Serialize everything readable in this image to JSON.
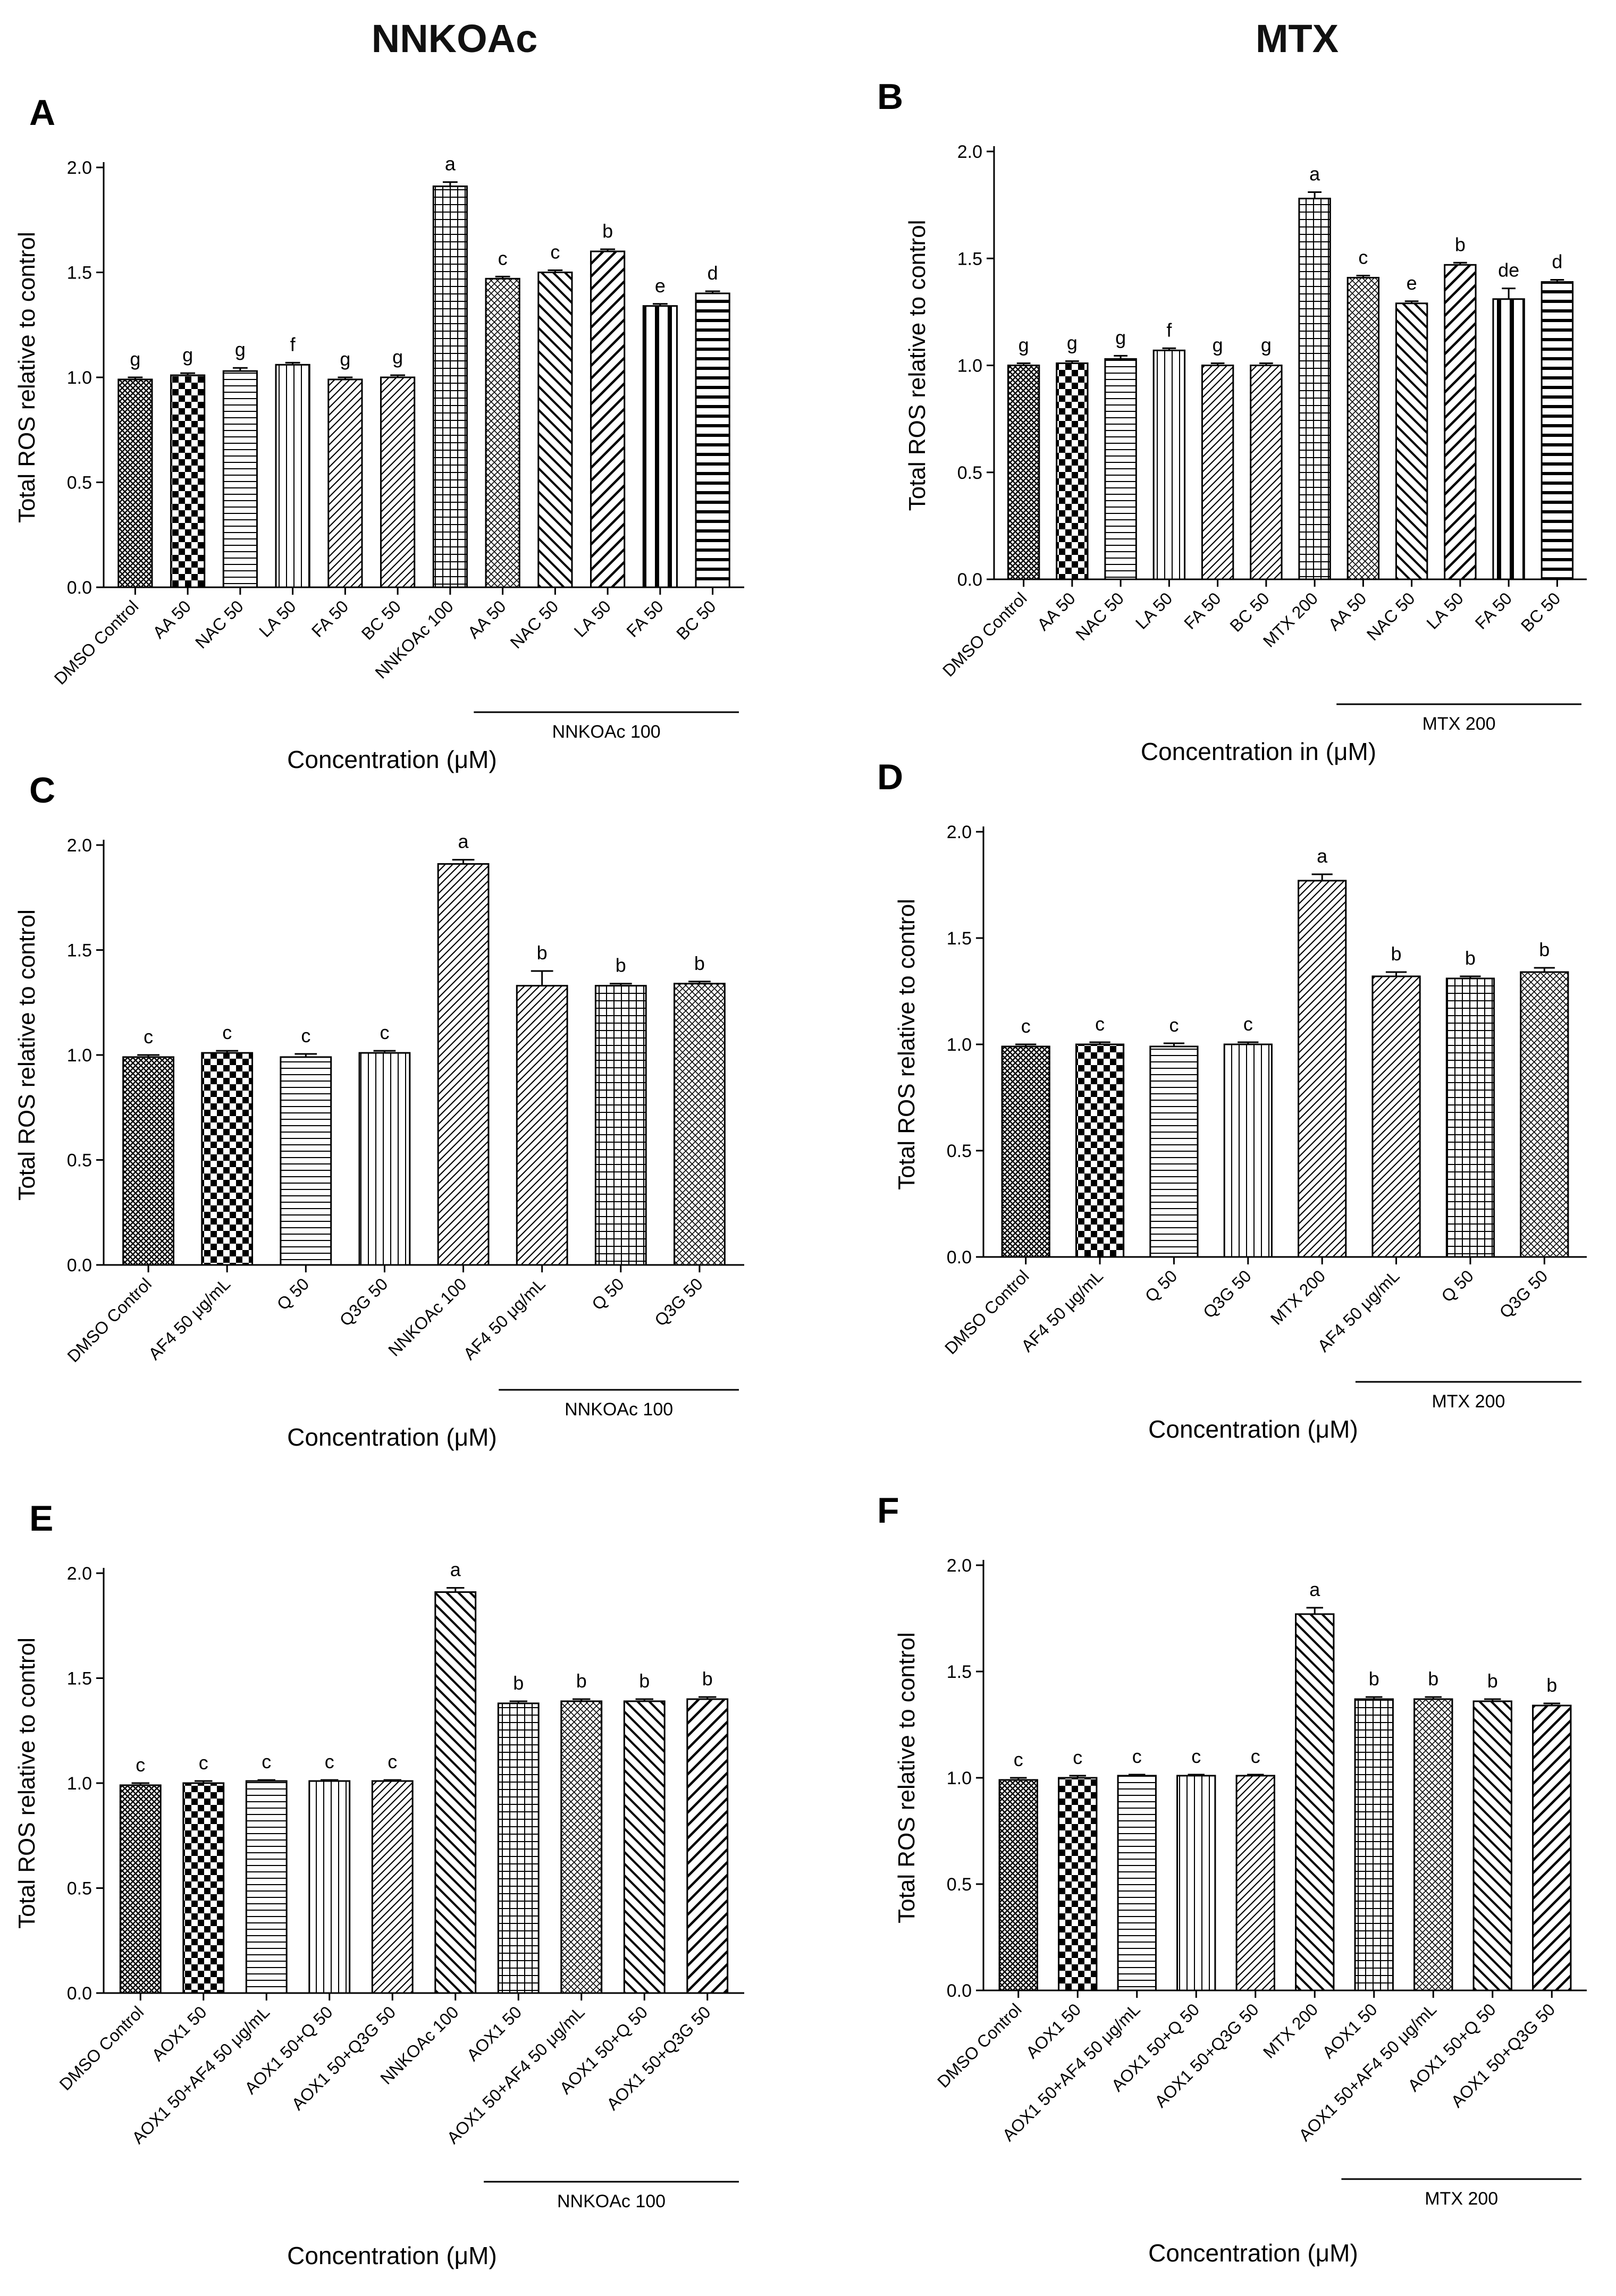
{
  "column_titles": {
    "left": "NNKOAc",
    "right": "MTX"
  },
  "patterns": {
    "crosshatch": "cross-hatch-fine",
    "checker": "checkerboard",
    "hlines": "horizontal-lines",
    "vlines": "vertical-lines",
    "diag_r": "diagonal-right",
    "grid": "square-grid",
    "diag_l": "diagonal-left",
    "diag_r_thick": "diagonal-right-thick",
    "vlines_thick": "vertical-lines-thick",
    "hlines_thick": "horizontal-lines-thick",
    "diamond": "diamond-hatch"
  },
  "chart_data": [
    {
      "panel": "A",
      "type": "bar",
      "ylabel": "Total ROS relative to control",
      "xlabel": "Concentration (μM)",
      "ylim": [
        0,
        2.0
      ],
      "yticks": [
        "0.0",
        "0.5",
        "1.0",
        "1.5",
        "2.0"
      ],
      "categories": [
        "DMSO Control",
        "AA 50",
        "NAC 50",
        "LA 50",
        "FA 50",
        "BC 50",
        "NNKOAc 100",
        "AA 50",
        "NAC 50",
        "LA 50",
        "FA 50",
        "BC 50"
      ],
      "values": [
        0.99,
        1.01,
        1.03,
        1.06,
        0.99,
        1.0,
        1.91,
        1.47,
        1.5,
        1.6,
        1.34,
        1.4
      ],
      "errors": [
        0.01,
        0.01,
        0.015,
        0.01,
        0.01,
        0.01,
        0.02,
        0.01,
        0.01,
        0.01,
        0.01,
        0.01
      ],
      "sig": [
        "g",
        "g",
        "g",
        "f",
        "g",
        "g",
        "a",
        "c",
        "c",
        "b",
        "e",
        "d"
      ],
      "fills": [
        "crosshatch",
        "checker",
        "hlines",
        "vlines",
        "diag_r",
        "diag_r",
        "grid",
        "diamond",
        "diag_l",
        "diag_r_thick",
        "vlines_thick",
        "hlines_thick"
      ],
      "group_label": "NNKOAc 100",
      "group_start": 7
    },
    {
      "panel": "B",
      "type": "bar",
      "ylabel": "Total ROS relative to control",
      "xlabel": "Concentration in (μM)",
      "ylim": [
        0,
        2.0
      ],
      "yticks": [
        "0.0",
        "0.5",
        "1.0",
        "1.5",
        "2.0"
      ],
      "categories": [
        "DMSO Control",
        "AA 50",
        "NAC 50",
        "LA 50",
        "FA 50",
        "BC 50",
        "MTX 200",
        "AA 50",
        "NAC 50",
        "LA 50",
        "FA 50",
        "BC 50"
      ],
      "values": [
        1.0,
        1.01,
        1.03,
        1.07,
        1.0,
        1.0,
        1.78,
        1.41,
        1.29,
        1.47,
        1.31,
        1.39
      ],
      "errors": [
        0.01,
        0.01,
        0.015,
        0.01,
        0.01,
        0.01,
        0.03,
        0.01,
        0.01,
        0.01,
        0.05,
        0.01
      ],
      "sig": [
        "g",
        "g",
        "g",
        "f",
        "g",
        "g",
        "a",
        "c",
        "e",
        "b",
        "de",
        "d"
      ],
      "fills": [
        "crosshatch",
        "checker",
        "hlines",
        "vlines",
        "diag_r",
        "diag_r",
        "grid",
        "diamond",
        "diag_l",
        "diag_r_thick",
        "vlines_thick",
        "hlines_thick"
      ],
      "group_label": "MTX 200",
      "group_start": 7
    },
    {
      "panel": "C",
      "type": "bar",
      "ylabel": "Total ROS relative to control",
      "xlabel": "Concentration (μM)",
      "ylim": [
        0,
        2.0
      ],
      "yticks": [
        "0.0",
        "0.5",
        "1.0",
        "1.5",
        "2.0"
      ],
      "categories": [
        "DMSO Control",
        "AF4 50 μg/mL",
        "Q 50",
        "Q3G 50",
        "NNKOAc 100",
        "AF4 50 μg/mL",
        "Q 50",
        "Q3G 50"
      ],
      "values": [
        0.99,
        1.01,
        0.99,
        1.01,
        1.91,
        1.33,
        1.33,
        1.34
      ],
      "errors": [
        0.01,
        0.01,
        0.015,
        0.01,
        0.02,
        0.07,
        0.01,
        0.01
      ],
      "sig": [
        "c",
        "c",
        "c",
        "c",
        "a",
        "b",
        "b",
        "b"
      ],
      "fills": [
        "crosshatch",
        "checker",
        "hlines",
        "vlines",
        "diag_r",
        "diag_r",
        "grid",
        "diamond"
      ],
      "group_label": "NNKOAc 100",
      "group_start": 5
    },
    {
      "panel": "D",
      "type": "bar",
      "ylabel": "Total ROS relative to control",
      "xlabel": "Concentration (μM)",
      "ylim": [
        0,
        2.0
      ],
      "yticks": [
        "0.0",
        "0.5",
        "1.0",
        "1.5",
        "2.0"
      ],
      "categories": [
        "DMSO Control",
        "AF4 50 μg/mL",
        "Q 50",
        "Q3G 50",
        "MTX 200",
        "AF4 50 μg/mL",
        "Q 50",
        "Q3G 50"
      ],
      "values": [
        0.99,
        1.0,
        0.99,
        1.0,
        1.77,
        1.32,
        1.31,
        1.34
      ],
      "errors": [
        0.01,
        0.01,
        0.015,
        0.01,
        0.03,
        0.02,
        0.01,
        0.02
      ],
      "sig": [
        "c",
        "c",
        "c",
        "c",
        "a",
        "b",
        "b",
        "b"
      ],
      "fills": [
        "crosshatch",
        "checker",
        "hlines",
        "vlines",
        "diag_r",
        "diag_r",
        "grid",
        "diamond"
      ],
      "group_label": "MTX 200",
      "group_start": 5
    },
    {
      "panel": "E",
      "type": "bar",
      "ylabel": "Total ROS relative to control",
      "xlabel": "Concentration (μM)",
      "ylim": [
        0,
        2.0
      ],
      "yticks": [
        "0.0",
        "0.5",
        "1.0",
        "1.5",
        "2.0"
      ],
      "categories": [
        "DMSO Control",
        "AOX1 50",
        "AOX1 50+AF4 50 μg/mL",
        "AOX1 50+Q 50",
        "AOX1 50+Q3G 50",
        "NNKOAc 100",
        "AOX1 50",
        "AOX1 50+AF4 50 μg/mL",
        "AOX1 50+Q 50",
        "AOX1 50+Q3G 50"
      ],
      "values": [
        0.99,
        1.0,
        1.01,
        1.01,
        1.01,
        1.91,
        1.38,
        1.39,
        1.39,
        1.4
      ],
      "errors": [
        0.01,
        0.01,
        0.005,
        0.005,
        0.005,
        0.02,
        0.01,
        0.01,
        0.01,
        0.01
      ],
      "sig": [
        "c",
        "c",
        "c",
        "c",
        "c",
        "a",
        "b",
        "b",
        "b",
        "b"
      ],
      "fills": [
        "crosshatch",
        "checker",
        "hlines",
        "vlines",
        "diag_r",
        "diag_l",
        "grid",
        "diamond",
        "diag_l",
        "diag_r_thick"
      ],
      "group_label": "NNKOAc 100",
      "group_start": 6
    },
    {
      "panel": "F",
      "type": "bar",
      "ylabel": "Total ROS relative to control",
      "xlabel": "Concentration (μM)",
      "ylim": [
        0,
        2.0
      ],
      "yticks": [
        "0.0",
        "0.5",
        "1.0",
        "1.5",
        "2.0"
      ],
      "categories": [
        "DMSO Control",
        "AOX1 50",
        "AOX1 50+AF4 50 μg/mL",
        "AOX1 50+Q 50",
        "AOX1 50+Q3G 50",
        "MTX 200",
        "AOX1 50",
        "AOX1 50+AF4 50 μg/mL",
        "AOX1 50+Q 50",
        "AOX1 50+Q3G 50"
      ],
      "values": [
        0.99,
        1.0,
        1.01,
        1.01,
        1.01,
        1.77,
        1.37,
        1.37,
        1.36,
        1.34
      ],
      "errors": [
        0.01,
        0.01,
        0.005,
        0.005,
        0.005,
        0.03,
        0.01,
        0.01,
        0.01,
        0.01
      ],
      "sig": [
        "c",
        "c",
        "c",
        "c",
        "c",
        "a",
        "b",
        "b",
        "b",
        "b"
      ],
      "fills": [
        "crosshatch",
        "checker",
        "hlines",
        "vlines",
        "diag_r",
        "diag_l",
        "grid",
        "diamond",
        "diag_l",
        "diag_r_thick"
      ],
      "group_label": "MTX 200",
      "group_start": 6
    }
  ]
}
